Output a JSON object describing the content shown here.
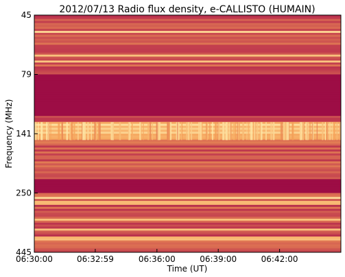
{
  "chart_data": {
    "type": "heatmap",
    "title": "2012/07/13  Radio flux density, e-CALLISTO (HUMAIN)",
    "xlabel": "Time (UT)",
    "ylabel": "Frequency (MHz)",
    "x_ticks": [
      "06:30:00",
      "06:32:59",
      "06:36:00",
      "06:39:00",
      "06:42:00"
    ],
    "y_ticks": [
      "45",
      "79",
      "141",
      "250",
      "445"
    ],
    "x_range": [
      "06:30:00",
      "06:45:00"
    ],
    "y_range": [
      45,
      445
    ],
    "colormap": "red-yellow (heat)",
    "colors": {
      "background": "#9b0a44",
      "mid": "#c03a4e",
      "bright": "#f5a057",
      "brightest": "#fff0b0"
    },
    "features": [
      {
        "label": "strong bright band",
        "freq_from": 126,
        "freq_to": 150
      },
      {
        "label": "dark quiet band",
        "freq_from": 80,
        "freq_to": 120
      },
      {
        "label": "dark quiet band",
        "freq_from": 218,
        "freq_to": 252
      }
    ]
  }
}
